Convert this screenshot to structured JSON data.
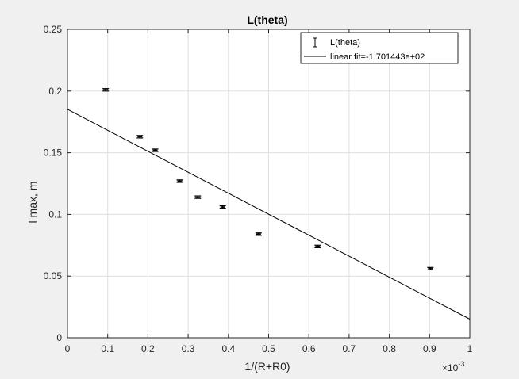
{
  "chart_data": {
    "type": "scatter",
    "title": "L(theta)",
    "xlabel": "1/(R+R0)",
    "ylabel": "l max, m",
    "x_exponent_label": "×10",
    "x_exponent_power": "-3",
    "x_scale_factor": 0.001,
    "xlim": [
      0,
      0.001
    ],
    "ylim": [
      0,
      0.25
    ],
    "x_ticks": [
      0,
      0.1,
      0.2,
      0.3,
      0.4,
      0.5,
      0.6,
      0.7,
      0.8,
      0.9,
      1
    ],
    "x_tick_labels": [
      "0",
      "0.1",
      "0.2",
      "0.3",
      "0.4",
      "0.5",
      "0.6",
      "0.7",
      "0.8",
      "0.9",
      "1"
    ],
    "y_ticks": [
      0,
      0.05,
      0.1,
      0.15,
      0.2,
      0.25
    ],
    "y_tick_labels": [
      "0",
      "0.05",
      "0.1",
      "0.15",
      "0.2",
      "0.25"
    ],
    "grid": true,
    "legend_position": "top-right",
    "series": [
      {
        "name": "L(theta)",
        "kind": "errorbar",
        "color": "#000000",
        "x": [
          9.5e-05,
          0.00018,
          0.000218,
          0.000279,
          0.000324,
          0.000386,
          0.000475,
          0.000622,
          0.000902
        ],
        "y": [
          0.201,
          0.163,
          0.152,
          0.127,
          0.114,
          0.106,
          0.084,
          0.074,
          0.056
        ],
        "err": [
          0.001,
          0.001,
          0.001,
          0.001,
          0.001,
          0.001,
          0.001,
          0.001,
          0.001
        ]
      },
      {
        "name": "linear fit=-1.701443e+02",
        "kind": "line",
        "color": "#000000",
        "x": [
          0,
          0.001
        ],
        "y": [
          0.1852,
          0.0151
        ]
      }
    ]
  }
}
